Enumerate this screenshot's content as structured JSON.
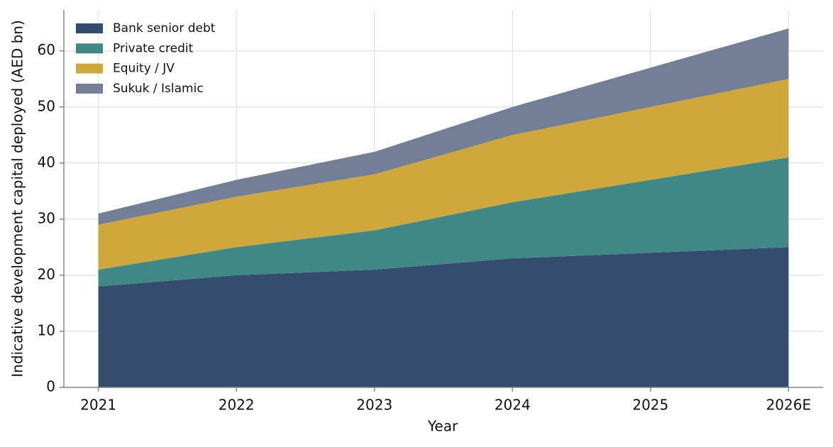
{
  "chart_data": {
    "type": "stacked_area",
    "x_label": "Year",
    "y_label": "Indicative development capital deployed (AED bn)",
    "categories": [
      "2021",
      "2022",
      "2023",
      "2024",
      "2025",
      "2026E"
    ],
    "series": [
      {
        "name": "Bank senior debt",
        "color": "#344d6e",
        "values": [
          18,
          20,
          21,
          23,
          24,
          25
        ]
      },
      {
        "name": "Private credit",
        "color": "#408886",
        "values": [
          3,
          5,
          7,
          10,
          13,
          16
        ]
      },
      {
        "name": "Equity / JV",
        "color": "#cfa83c",
        "values": [
          8,
          9,
          10,
          12,
          13,
          14
        ]
      },
      {
        "name": "Sukuk / Islamic",
        "color": "#737f95",
        "values": [
          2,
          3,
          4,
          5,
          7,
          9
        ]
      }
    ],
    "ylim": [
      0,
      67.3
    ],
    "yticks": [
      0,
      10,
      20,
      30,
      40,
      50,
      60
    ],
    "grid": true,
    "legend": "upper-left"
  }
}
